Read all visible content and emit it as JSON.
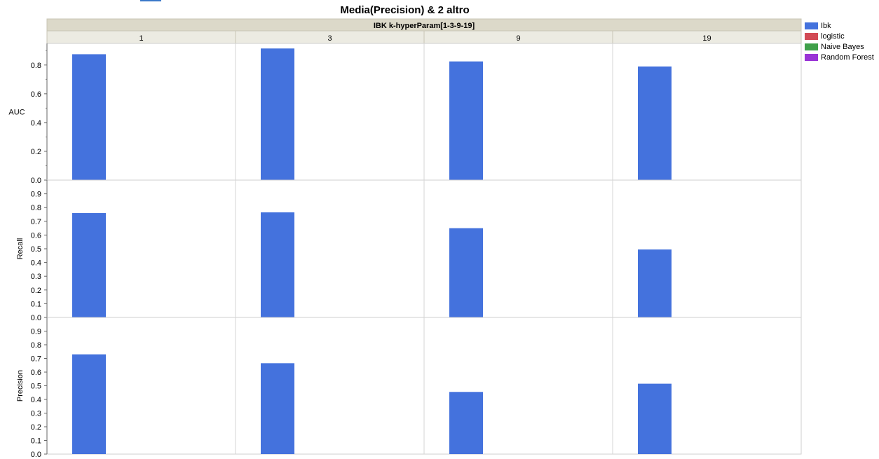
{
  "title": "Media(Precision) & 2 altro",
  "group_header": "IBK k-hyperParam[1-3-9-19]",
  "legend": [
    {
      "label": "Ibk",
      "color": "#4472dd"
    },
    {
      "label": "logistic",
      "color": "#d24a55"
    },
    {
      "label": "Naive Bayes",
      "color": "#3fa04a"
    },
    {
      "label": "Random Forest",
      "color": "#9a35d6"
    }
  ],
  "chart_data": {
    "type": "bar",
    "title": "Media(Precision) & 2 altro",
    "group_label": "IBK k-hyperParam[1-3-9-19]",
    "categories": [
      "1",
      "3",
      "9",
      "19"
    ],
    "legend_position": "right",
    "grid": true,
    "panels": [
      {
        "ylabel": "AUC",
        "ylim": [
          0,
          0.95
        ],
        "ticks": [
          0.0,
          0.2,
          0.4,
          0.6,
          0.8
        ],
        "tick_labels": [
          "0.0",
          "0.2",
          "0.4",
          "0.6",
          "0.8"
        ],
        "series": [
          {
            "name": "Ibk",
            "values": [
              0.875,
              0.915,
              0.825,
              0.79
            ]
          }
        ]
      },
      {
        "ylabel": "Recall",
        "ylim": [
          0,
          1.0
        ],
        "ticks": [
          0.0,
          0.1,
          0.2,
          0.3,
          0.4,
          0.5,
          0.6,
          0.7,
          0.8,
          0.9
        ],
        "tick_labels": [
          "0.0",
          "0.1",
          "0.2",
          "0.3",
          "0.4",
          "0.5",
          "0.6",
          "0.7",
          "0.8",
          "0.9"
        ],
        "series": [
          {
            "name": "Ibk",
            "values": [
              0.76,
              0.765,
              0.65,
              0.495
            ]
          }
        ]
      },
      {
        "ylabel": "Precision",
        "ylim": [
          0,
          1.0
        ],
        "ticks": [
          0.0,
          0.1,
          0.2,
          0.3,
          0.4,
          0.5,
          0.6,
          0.7,
          0.8,
          0.9
        ],
        "tick_labels": [
          "0.0",
          "0.1",
          "0.2",
          "0.3",
          "0.4",
          "0.5",
          "0.6",
          "0.7",
          "0.8",
          "0.9"
        ],
        "series": [
          {
            "name": "Ibk",
            "values": [
              0.73,
              0.665,
              0.455,
              0.515
            ]
          }
        ]
      }
    ]
  }
}
